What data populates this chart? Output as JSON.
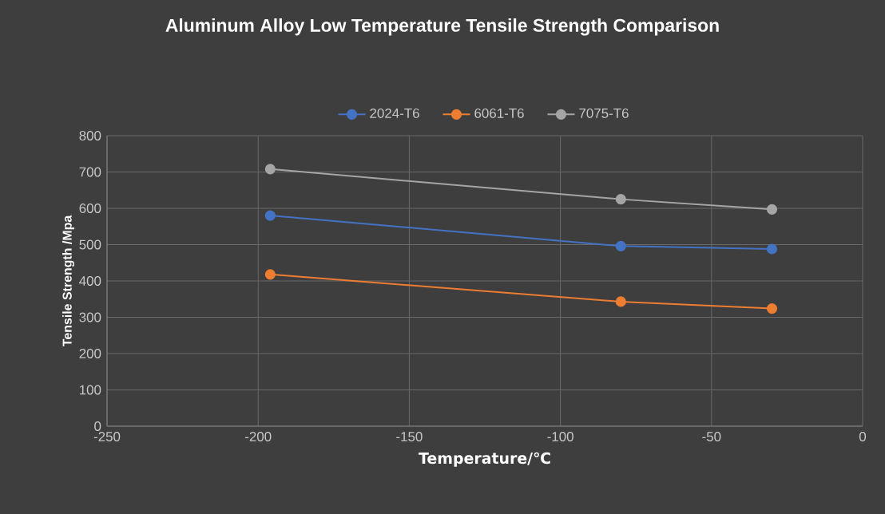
{
  "chart_data": {
    "type": "line",
    "title": "Aluminum Alloy Low  Temperature Tensile Strength Comparison",
    "xlabel": "Temperature/℃",
    "ylabel": "Tensile Strength /Mpa",
    "x": [
      -196,
      -80,
      -30
    ],
    "series": [
      {
        "name": "2024-T6",
        "color": "#4472c4",
        "values": [
          580,
          496,
          488
        ]
      },
      {
        "name": "6061-T6",
        "color": "#ed7d31",
        "values": [
          418,
          343,
          324
        ]
      },
      {
        "name": "7075-T6",
        "color": "#a5a5a5",
        "values": [
          708,
          625,
          597
        ]
      }
    ],
    "xlim": [
      -250,
      0
    ],
    "xticks": [
      -250,
      -200,
      -150,
      -100,
      -50,
      0
    ],
    "ylim": [
      0,
      800
    ],
    "yticks": [
      0,
      100,
      200,
      300,
      400,
      500,
      600,
      700,
      800
    ],
    "grid": true,
    "legend": "top",
    "marker": "circle",
    "line_style": "solid"
  }
}
